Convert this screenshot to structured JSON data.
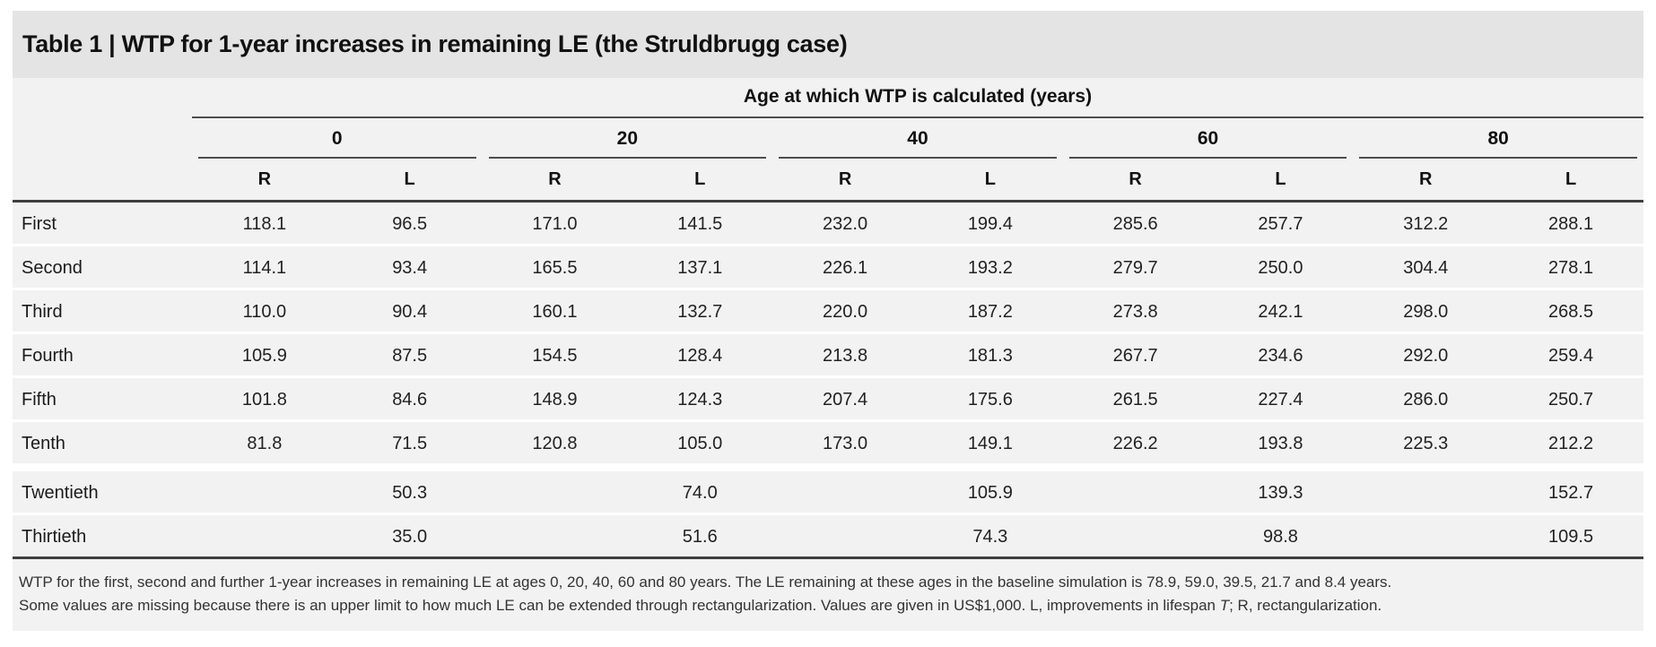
{
  "table": {
    "title": "Table 1 | WTP for 1-year increases in remaining LE (the Struldbrugg case)",
    "header": {
      "span_label": "Age at which WTP is calculated (years)",
      "age_groups": [
        "0",
        "20",
        "40",
        "60",
        "80"
      ],
      "subheaders": [
        "R",
        "L"
      ]
    },
    "rows": [
      {
        "label": "First",
        "values": [
          "118.1",
          "96.5",
          "171.0",
          "141.5",
          "232.0",
          "199.4",
          "285.6",
          "257.7",
          "312.2",
          "288.1"
        ]
      },
      {
        "label": "Second",
        "values": [
          "114.1",
          "93.4",
          "165.5",
          "137.1",
          "226.1",
          "193.2",
          "279.7",
          "250.0",
          "304.4",
          "278.1"
        ]
      },
      {
        "label": "Third",
        "values": [
          "110.0",
          "90.4",
          "160.1",
          "132.7",
          "220.0",
          "187.2",
          "273.8",
          "242.1",
          "298.0",
          "268.5"
        ]
      },
      {
        "label": "Fourth",
        "values": [
          "105.9",
          "87.5",
          "154.5",
          "128.4",
          "213.8",
          "181.3",
          "267.7",
          "234.6",
          "292.0",
          "259.4"
        ]
      },
      {
        "label": "Fifth",
        "values": [
          "101.8",
          "84.6",
          "148.9",
          "124.3",
          "207.4",
          "175.6",
          "261.5",
          "227.4",
          "286.0",
          "250.7"
        ]
      },
      {
        "label": "Tenth",
        "values": [
          "81.8",
          "71.5",
          "120.8",
          "105.0",
          "173.0",
          "149.1",
          "226.2",
          "193.8",
          "225.3",
          "212.2"
        ]
      },
      {
        "label": "Twentieth",
        "values": [
          "",
          "50.3",
          "",
          "74.0",
          "",
          "105.9",
          "",
          "139.3",
          "",
          "152.7"
        ]
      },
      {
        "label": "Thirtieth",
        "values": [
          "",
          "35.0",
          "",
          "51.6",
          "",
          "74.3",
          "",
          "98.8",
          "",
          "109.5"
        ]
      }
    ],
    "footnote": {
      "line1": "WTP for the first, second and further 1-year increases in remaining LE at ages 0, 20, 40, 60 and 80 years. The LE remaining at these ages in the baseline simulation is 78.9, 59.0, 39.5, 21.7 and 8.4 years.",
      "line2_pre": "Some values are missing because there is an upper limit to how much LE can be extended through rectangularization. Values are given in US$1,000. L, improvements in lifespan ",
      "line2_italic": "T",
      "line2_post": "; R, rectangularization."
    }
  },
  "colors": {
    "title_band": "#e4e4e4",
    "table_background": "#f2f2f2",
    "rule_dark": "#3f3f3f",
    "rule_medium": "#4d4d4d",
    "row_separator": "#ffffff",
    "text": "#1a1a1a"
  }
}
